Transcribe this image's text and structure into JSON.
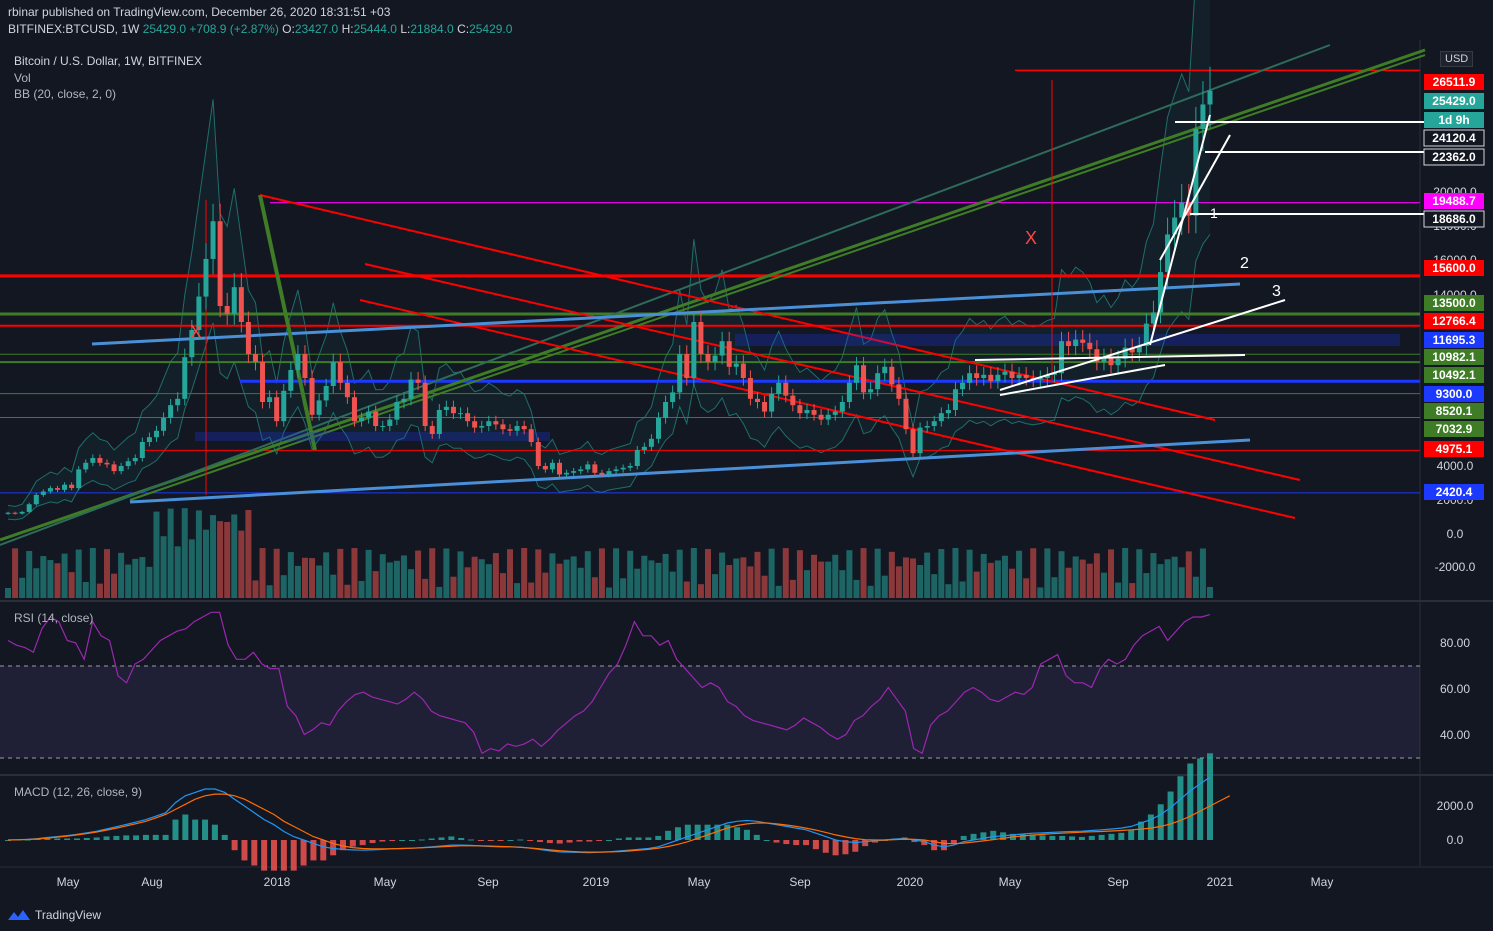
{
  "header": {
    "published": "rbinar published on TradingView.com, December 26, 2020 18:31:51 +03",
    "symbol": "BITFINEX:BTCUSD, 1W",
    "last": "25429.0",
    "change": "+708.9 (+2.87%)",
    "o_label": "O:",
    "o": "23427.0",
    "h_label": "H:",
    "h": "25444.0",
    "l_label": "L:",
    "l": "21884.0",
    "c_label": "C:",
    "c": "25429.0"
  },
  "legend": {
    "title": "Bitcoin / U.S. Dollar, 1W, BITFINEX",
    "vol": "Vol",
    "bb": "BB (20, close, 2, 0)"
  },
  "currency": "USD",
  "rsi_label": "RSI (14, close)",
  "macd_label": "MACD (12, 26, close, 9)",
  "footer": "TradingView",
  "colors": {
    "up": "#26a69a",
    "down": "#ef5350",
    "bg": "#131722",
    "red": "#ff0000",
    "green": "#3e7d25",
    "blue": "#1c39ff",
    "lightblue": "#4a90d9",
    "magenta": "#ff00ff",
    "rsi": "#9c27b0",
    "macd": "#2196f3",
    "signal": "#ff6d00"
  },
  "chart_data": {
    "type": "candlestick",
    "title": "Bitcoin / U.S. Dollar, 1W, BITFINEX",
    "x_ticks": [
      "May",
      "Aug",
      "2018",
      "May",
      "Sep",
      "2019",
      "May",
      "Sep",
      "2020",
      "May",
      "Sep",
      "2021",
      "May"
    ],
    "y_ticks": [
      "20000.0",
      "18000.0",
      "16000.0",
      "14000.0",
      "4000.0",
      "2000.0",
      "0.0",
      "-2000.0"
    ],
    "rsi_ticks": [
      "80.00",
      "60.00",
      "40.00"
    ],
    "macd_ticks": [
      "2000.0",
      "0.0"
    ],
    "price_labels": [
      {
        "text": "26511.9",
        "color": "#ff0000"
      },
      {
        "text": "25429.0",
        "color": "#26a69a"
      },
      {
        "text": "1d 9h",
        "color": "#26a69a"
      },
      {
        "text": "24120.4",
        "color": "#131722"
      },
      {
        "text": "22362.0",
        "color": "#131722"
      },
      {
        "text": "19488.7",
        "color": "#ff00ff"
      },
      {
        "text": "18686.0",
        "color": "#131722"
      },
      {
        "text": "15600.0",
        "color": "#ff0000"
      },
      {
        "text": "13500.0",
        "color": "#3e7d25"
      },
      {
        "text": "12766.4",
        "color": "#ff0000"
      },
      {
        "text": "11695.3",
        "color": "#1c39ff"
      },
      {
        "text": "10982.1",
        "color": "#3e7d25"
      },
      {
        "text": "10492.1",
        "color": "#3e7d25"
      },
      {
        "text": "9300.0",
        "color": "#1c39ff"
      },
      {
        "text": "8520.1",
        "color": "#3e7d25"
      },
      {
        "text": "7032.9",
        "color": "#3e7d25"
      },
      {
        "text": "4975.1",
        "color": "#ff0000"
      },
      {
        "text": "2420.4",
        "color": "#1c39ff"
      }
    ],
    "annotations": [
      "X",
      "X",
      "1",
      "2",
      "3"
    ],
    "closes": [
      1250,
      1200,
      1300,
      1750,
      2300,
      2500,
      2700,
      2600,
      2900,
      2700,
      3800,
      4200,
      4500,
      4200,
      4100,
      3700,
      4000,
      4300,
      4500,
      5500,
      5800,
      6200,
      7000,
      7800,
      8200,
      10800,
      12500,
      14500,
      16500,
      18500,
      14000,
      13500,
      15000,
      13000,
      11000,
      10500,
      8000,
      8300,
      6800,
      8700,
      10000,
      11000,
      9500,
      7200,
      8100,
      9000,
      10500,
      9200,
      8300,
      6800,
      7000,
      7400,
      6500,
      6500,
      6900,
      8000,
      8200,
      9400,
      9200,
      6500,
      6000,
      7500,
      7700,
      7300,
      7300,
      6800,
      6400,
      6500,
      6800,
      6600,
      6300,
      6200,
      6500,
      6300,
      5500,
      4000,
      3800,
      4200,
      3500,
      3600,
      3700,
      3800,
      4100,
      3600,
      3500,
      3700,
      3800,
      3900,
      4000,
      5000,
      5200,
      5700,
      7000,
      8000,
      8600,
      11000,
      9500,
      13000,
      11000,
      10500,
      10900,
      11800,
      10200,
      10400,
      9500,
      8200,
      8000,
      7400,
      8500,
      9200,
      8400,
      7800,
      7300,
      7500,
      7200,
      6900,
      7200,
      7400,
      8000,
      9200,
      10300,
      8600,
      8800,
      9800,
      10200,
      9100,
      8200,
      6300,
      4800,
      6400,
      6500,
      6800,
      7300,
      7500,
      8800,
      9200,
      9800,
      9500,
      9700,
      9300,
      9700,
      9900,
      9500,
      9700,
      9500,
      9400,
      9500,
      9700,
      9800,
      11800,
      11500,
      11900,
      11700,
      11300,
      10500,
      10800,
      10300,
      10700,
      11400,
      11100,
      11500,
      12900,
      13600,
      15800,
      17800,
      18700,
      19500,
      18800,
      23400,
      24700,
      25429
    ],
    "rsi": [
      80,
      78,
      77,
      75,
      85,
      90,
      88,
      80,
      79,
      72,
      88,
      82,
      80,
      65,
      62,
      70,
      72,
      76,
      80,
      82,
      84,
      85,
      88,
      90,
      92,
      92,
      78,
      72,
      72,
      75,
      70,
      68,
      68,
      52,
      48,
      40,
      42,
      45,
      44,
      50,
      54,
      57,
      58,
      56,
      55,
      54,
      53,
      55,
      58,
      55,
      50,
      48,
      47,
      46,
      45,
      41,
      32,
      34,
      33,
      36,
      35,
      36,
      38,
      35,
      38,
      42,
      45,
      48,
      50,
      54,
      60,
      66,
      70,
      78,
      88,
      82,
      82,
      78,
      80,
      72,
      68,
      64,
      60,
      62,
      60,
      54,
      52,
      48,
      46,
      45,
      44,
      43,
      42,
      44,
      47,
      45,
      43,
      40,
      38,
      40,
      46,
      48,
      52,
      55,
      60,
      55,
      50,
      34,
      32,
      44,
      48,
      50,
      54,
      58,
      60,
      58,
      55,
      54,
      56,
      58,
      57,
      60,
      70,
      72,
      74,
      65,
      62,
      62,
      60,
      68,
      72,
      70,
      72,
      78,
      82,
      84,
      86,
      80,
      84,
      88,
      90,
      90,
      91
    ],
    "macd": [
      0,
      20,
      40,
      80,
      150,
      200,
      260,
      330,
      420,
      520,
      650,
      780,
      920,
      1050,
      1200,
      1400,
      1600,
      2200,
      2600,
      2800,
      3000,
      3000,
      2800,
      2400,
      2000,
      1600,
      1200,
      900,
      500,
      200,
      0,
      -200,
      -400,
      -500,
      -550,
      -580,
      -600,
      -580,
      -550,
      -520,
      -500,
      -480,
      -450,
      -400,
      -350,
      -300,
      -300,
      -320,
      -350,
      -380,
      -400,
      -400,
      -420,
      -480,
      -560,
      -640,
      -700,
      -720,
      -730,
      -740,
      -720,
      -700,
      -650,
      -600,
      -550,
      -500,
      -400,
      -200,
      0,
      200,
      400,
      600,
      800,
      1000,
      1100,
      1150,
      1100,
      1000,
      900,
      800,
      700,
      600,
      400,
      200,
      0,
      -100,
      -150,
      -100,
      -50,
      0,
      50,
      100,
      0,
      -100,
      -300,
      -400,
      -300,
      -100,
      0,
      100,
      200,
      250,
      300,
      350,
      400,
      420,
      450,
      480,
      500,
      520,
      560,
      600,
      650,
      700,
      800,
      1000,
      1200,
      1500,
      1900,
      2400,
      2900,
      3300,
      3700
    ],
    "signal": [
      0,
      10,
      30,
      60,
      110,
      170,
      230,
      300,
      380,
      470,
      580,
      700,
      830,
      960,
      1100,
      1300,
      1500,
      1800,
      2100,
      2400,
      2600,
      2700,
      2700,
      2600,
      2400,
      2100,
      1800,
      1500,
      1100,
      800,
      500,
      200,
      0,
      -200,
      -350,
      -450,
      -500,
      -520,
      -520,
      -510,
      -500,
      -480,
      -460,
      -430,
      -400,
      -370,
      -340,
      -330,
      -340,
      -360,
      -380,
      -400,
      -430,
      -470,
      -520,
      -580,
      -630,
      -670,
      -700,
      -710,
      -710,
      -700,
      -680,
      -650,
      -600,
      -550,
      -480,
      -380,
      -250,
      -100,
      100,
      300,
      500,
      700,
      850,
      950,
      1000,
      1000,
      950,
      880,
      800,
      700,
      580,
      450,
      300,
      180,
      80,
      20,
      0,
      0,
      20,
      50,
      40,
      0,
      -100,
      -200,
      -220,
      -180,
      -120,
      -50,
      20,
      100,
      180,
      240,
      290,
      330,
      370,
      400,
      430,
      460,
      480,
      500,
      530,
      560,
      600,
      640,
      700,
      800,
      950,
      1150,
      1400,
      1700,
      2000,
      2300,
      2600
    ]
  }
}
